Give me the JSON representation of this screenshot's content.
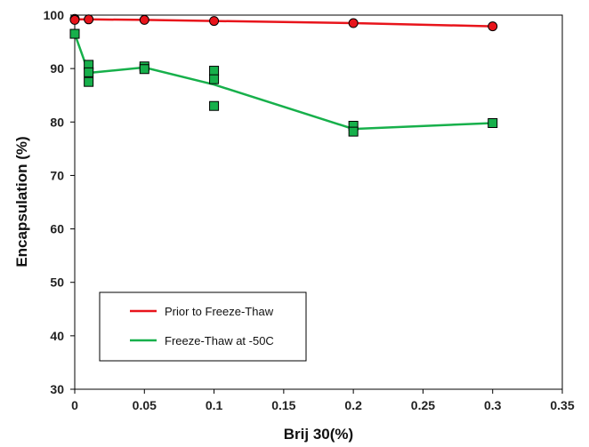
{
  "chart_data": {
    "type": "line",
    "title": "",
    "xlabel": "Brij 30(%)",
    "ylabel": "Encapsulation (%)",
    "xlim": [
      0,
      0.35
    ],
    "ylim": [
      30,
      100
    ],
    "x_ticks": [
      "0",
      "0.05",
      "0.1",
      "0.15",
      "0.2",
      "0.25",
      "0.3",
      "0.35"
    ],
    "y_ticks": [
      "30",
      "40",
      "50",
      "60",
      "70",
      "80",
      "90",
      "100"
    ],
    "grid": false,
    "legend_position": "lower-left",
    "series": [
      {
        "name": "Prior to Freeze-Thaw",
        "color": "#e8141b",
        "marker": "circle",
        "points": [
          [
            0,
            99.3
          ],
          [
            0,
            99.1
          ],
          [
            0.01,
            99.2
          ],
          [
            0.05,
            99.1
          ],
          [
            0.1,
            98.9
          ],
          [
            0.2,
            98.5
          ],
          [
            0.3,
            97.9
          ]
        ],
        "line": [
          [
            0,
            99.2
          ],
          [
            0.01,
            99.2
          ],
          [
            0.05,
            99.1
          ],
          [
            0.1,
            98.9
          ],
          [
            0.2,
            98.5
          ],
          [
            0.3,
            97.9
          ]
        ]
      },
      {
        "name": "Freeze-Thaw at -50C",
        "color": "#17b04b",
        "marker": "square",
        "points": [
          [
            0,
            96.5
          ],
          [
            0.01,
            90.7
          ],
          [
            0.01,
            89.3
          ],
          [
            0.01,
            87.5
          ],
          [
            0.05,
            90.4
          ],
          [
            0.05,
            89.9
          ],
          [
            0.1,
            89.6
          ],
          [
            0.1,
            88.0
          ],
          [
            0.1,
            83.0
          ],
          [
            0.2,
            79.3
          ],
          [
            0.2,
            78.2
          ],
          [
            0.3,
            79.8
          ]
        ],
        "line": [
          [
            0,
            96.5
          ],
          [
            0.01,
            89.2
          ],
          [
            0.05,
            90.2
          ],
          [
            0.1,
            87.0
          ],
          [
            0.2,
            78.7
          ],
          [
            0.3,
            79.8
          ]
        ]
      }
    ]
  }
}
